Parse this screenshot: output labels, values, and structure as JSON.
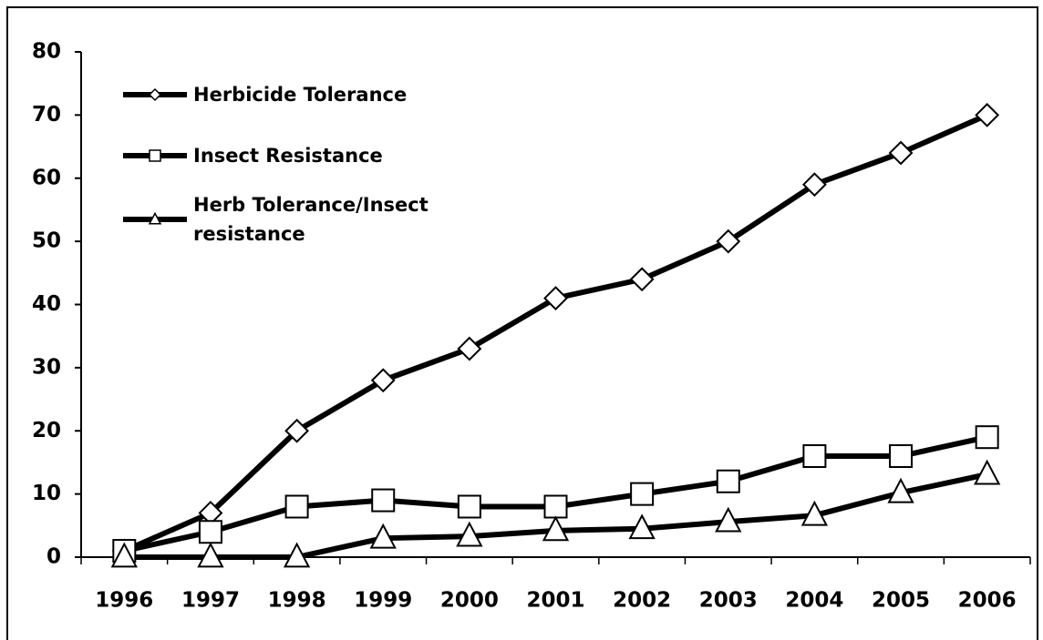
{
  "chart_data": {
    "type": "line",
    "categories": [
      "1996",
      "1997",
      "1998",
      "1999",
      "2000",
      "2001",
      "2002",
      "2003",
      "2004",
      "2005",
      "2006"
    ],
    "series": [
      {
        "name": "Herbicide Tolerance",
        "color": "#000000",
        "marker": "diamond",
        "values": [
          1,
          7,
          20,
          28,
          33,
          41,
          44,
          50,
          59,
          64,
          70
        ]
      },
      {
        "name": "Insect Resistance",
        "color": "#000000",
        "marker": "square",
        "values": [
          1,
          4,
          8,
          9,
          8,
          8,
          10,
          12,
          16,
          16,
          19
        ]
      },
      {
        "name": "Herb Tolerance/Insect resistance",
        "color": "#000000",
        "marker": "triangle",
        "values": [
          0,
          0,
          0,
          3,
          3.3,
          4.2,
          4.5,
          5.6,
          6.6,
          10.2,
          13.1
        ]
      }
    ],
    "ylim": [
      0,
      80
    ],
    "yticks": [
      0,
      10,
      20,
      30,
      40,
      50,
      60,
      70,
      80
    ],
    "grid": false,
    "legend": "upper left"
  }
}
